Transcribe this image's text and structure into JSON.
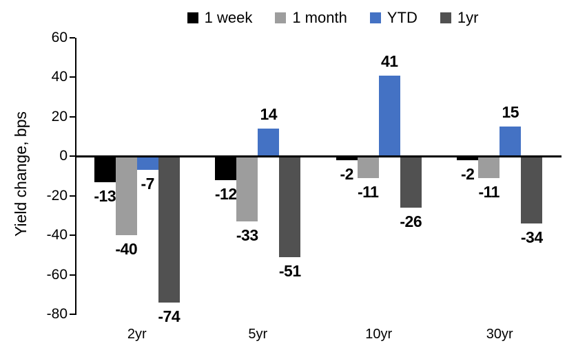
{
  "chart_data": {
    "type": "bar",
    "title": "",
    "ylabel": "Yield change, bps",
    "xlabel": "",
    "categories": [
      "2yr",
      "5yr",
      "10yr",
      "30yr"
    ],
    "series": [
      {
        "name": "1 week",
        "color": "#000000",
        "values": [
          -13,
          -12,
          -2,
          -2
        ]
      },
      {
        "name": "1 month",
        "color": "#9D9D9D",
        "values": [
          -40,
          -33,
          -11,
          -11
        ]
      },
      {
        "name": "YTD",
        "color": "#4472C4",
        "values": [
          -7,
          14,
          41,
          15
        ]
      },
      {
        "name": "1yr",
        "color": "#515151",
        "values": [
          -74,
          -51,
          -26,
          -34
        ]
      }
    ],
    "ylim": [
      -80,
      60
    ],
    "yticks": [
      60,
      40,
      20,
      0,
      -20,
      -40,
      -60,
      -80
    ],
    "grid": false,
    "legend_position": "top",
    "data_labels": true,
    "axis_color": "#000000",
    "background_color": "#FFFFFF"
  }
}
